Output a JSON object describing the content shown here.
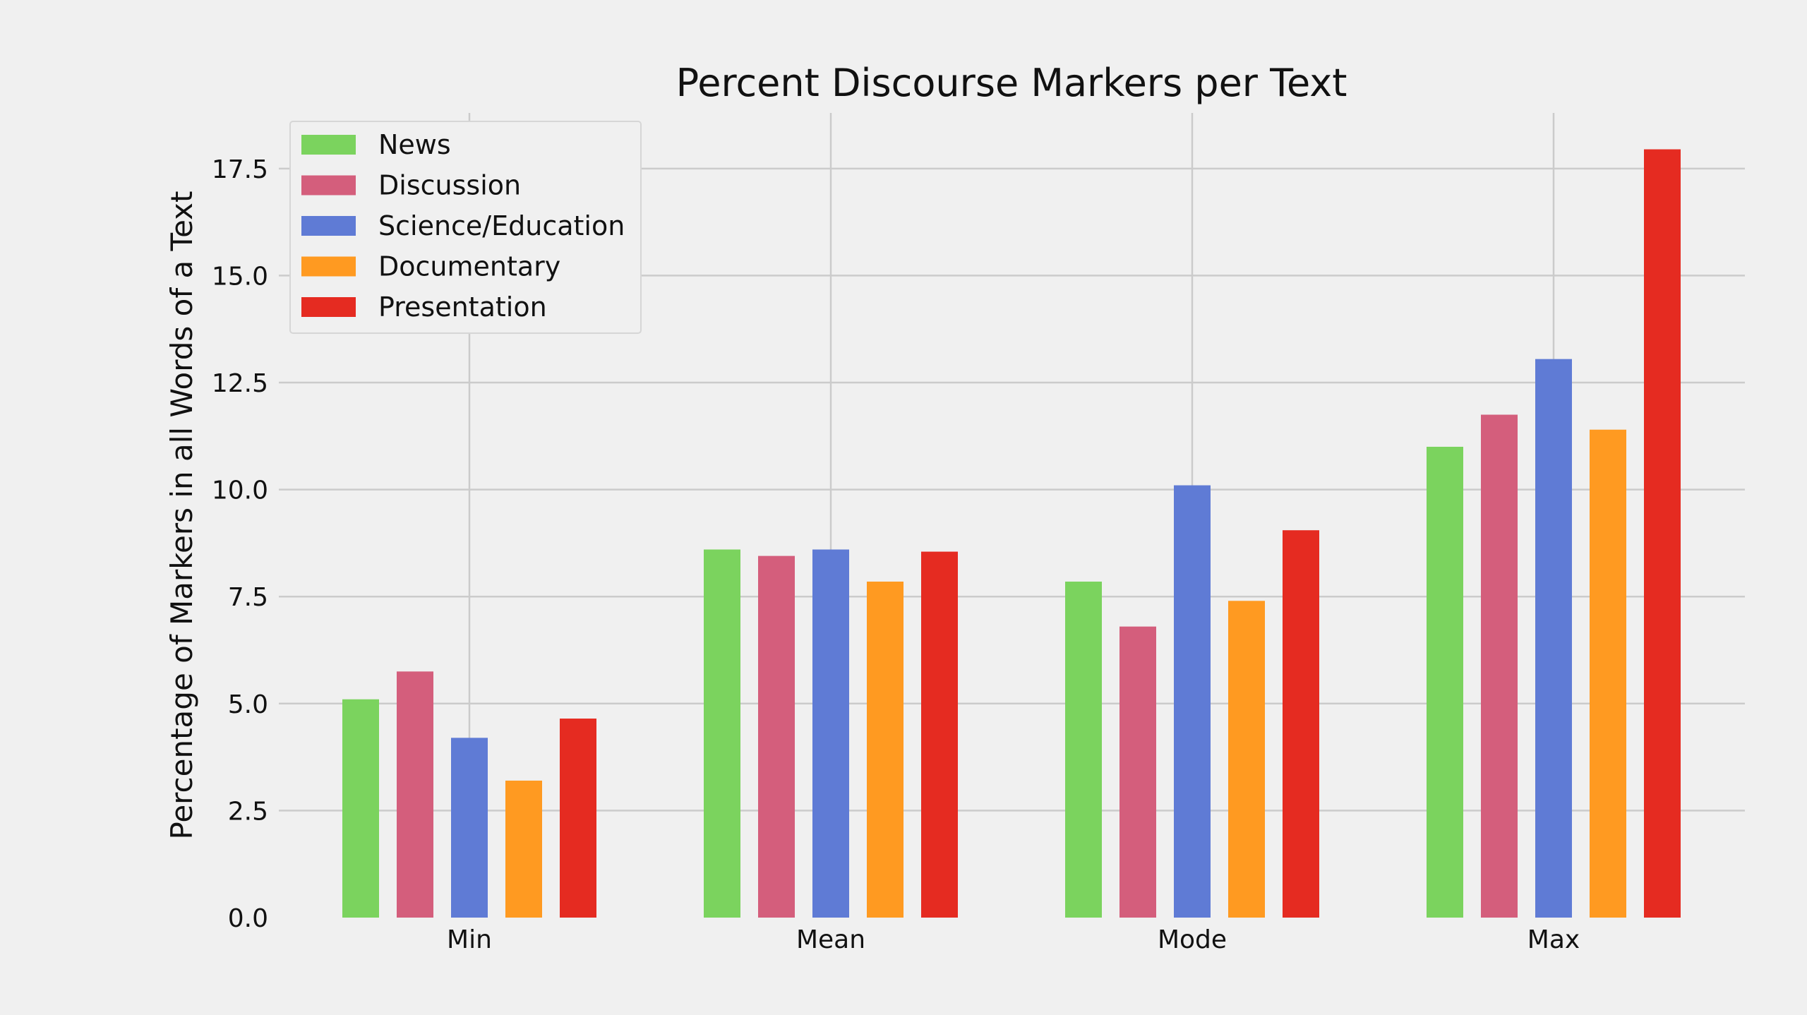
{
  "chart_data": {
    "type": "bar",
    "title": "Percent Discourse Markers per Text",
    "xlabel": "",
    "ylabel": "Percentage of Markers in all Words of a Text",
    "categories": [
      "Min",
      "Mean",
      "Mode",
      "Max"
    ],
    "ylim": [
      0,
      18.8
    ],
    "yticks": [
      "0.0",
      "2.5",
      "5.0",
      "7.5",
      "10.0",
      "12.5",
      "15.0",
      "17.5"
    ],
    "grid": true,
    "legend_position": "top-left",
    "series": [
      {
        "name": "News",
        "color": "#7bd35e",
        "values": [
          5.1,
          8.6,
          7.85,
          11.0
        ]
      },
      {
        "name": "Discussion",
        "color": "#d45e7c",
        "values": [
          5.75,
          8.45,
          6.8,
          11.75
        ]
      },
      {
        "name": "Science/Education",
        "color": "#5f7bd5",
        "values": [
          4.2,
          8.6,
          10.1,
          13.05
        ]
      },
      {
        "name": "Documentary",
        "color": "#ff9a21",
        "values": [
          3.2,
          7.85,
          7.4,
          11.4
        ]
      },
      {
        "name": "Presentation",
        "color": "#e52b21",
        "values": [
          4.65,
          8.55,
          9.05,
          17.95
        ]
      }
    ]
  }
}
